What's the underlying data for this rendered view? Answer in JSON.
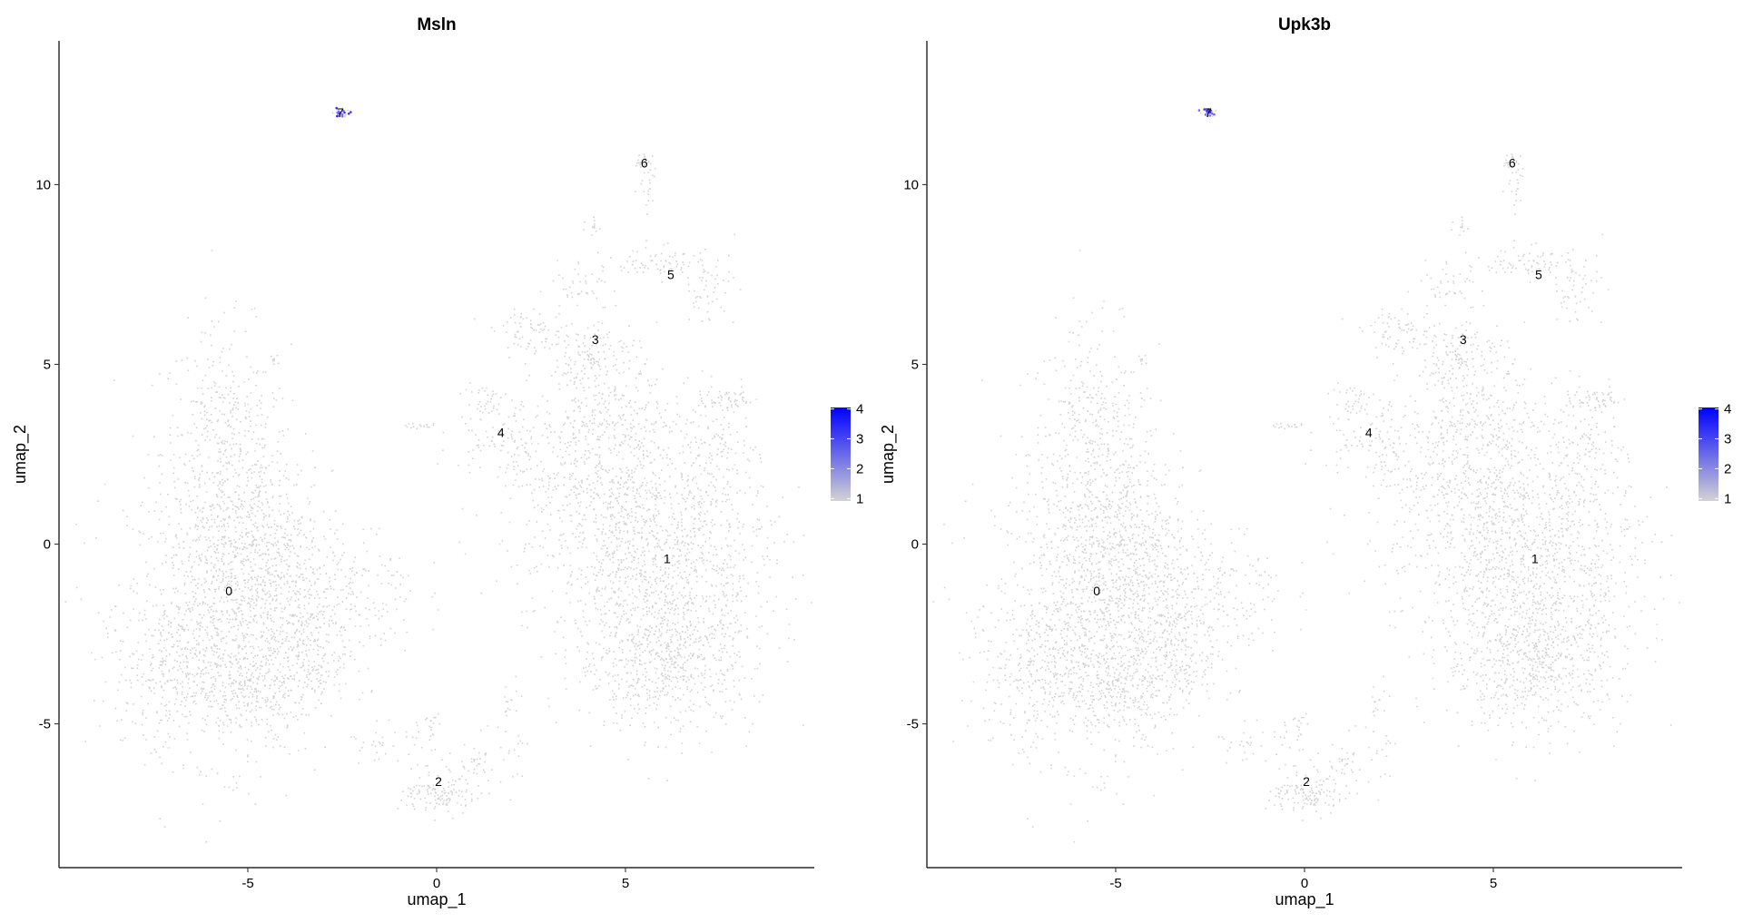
{
  "chart_data": [
    {
      "type": "scatter",
      "title": "Msln",
      "xlabel": "umap_1",
      "ylabel": "umap_2",
      "xlim": [
        -10.0,
        10.0
      ],
      "ylim": [
        -9.0,
        14.0
      ],
      "x_ticks": [
        -5,
        0,
        5
      ],
      "y_ticks": [
        -5,
        0,
        5,
        10
      ],
      "grid": false,
      "legend": {
        "placement": "right",
        "type": "colorbar",
        "ticks": [
          1,
          2,
          3,
          4
        ],
        "low_color": "#d3d3d3",
        "high_color": "#0000ff"
      },
      "cluster_labels": [
        {
          "label": "0",
          "x": -5.5,
          "y": -1.3
        },
        {
          "label": "1",
          "x": 6.1,
          "y": -0.4
        },
        {
          "label": "2",
          "x": 0.05,
          "y": -6.6
        },
        {
          "label": "3",
          "x": 4.2,
          "y": 5.7
        },
        {
          "label": "4",
          "x": 1.7,
          "y": 3.1
        },
        {
          "label": "5",
          "x": 6.2,
          "y": 7.5
        },
        {
          "label": "6",
          "x": 5.5,
          "y": 10.6
        },
        {
          "label": "7",
          "x": -2.55,
          "y": 12.0
        }
      ]
    },
    {
      "type": "scatter",
      "title": "Upk3b",
      "xlabel": "umap_1",
      "ylabel": "umap_2",
      "xlim": [
        -10.0,
        10.0
      ],
      "ylim": [
        -9.0,
        14.0
      ],
      "x_ticks": [
        -5,
        0,
        5
      ],
      "y_ticks": [
        -5,
        0,
        5,
        10
      ],
      "grid": false,
      "legend": {
        "placement": "right",
        "type": "colorbar",
        "ticks": [
          1,
          2,
          3,
          4
        ],
        "low_color": "#d3d3d3",
        "high_color": "#0000ff"
      },
      "cluster_labels": [
        {
          "label": "0",
          "x": -5.5,
          "y": -1.3
        },
        {
          "label": "1",
          "x": 6.1,
          "y": -0.4
        },
        {
          "label": "2",
          "x": 0.05,
          "y": -6.6
        },
        {
          "label": "3",
          "x": 4.2,
          "y": 5.7
        },
        {
          "label": "4",
          "x": 1.7,
          "y": 3.1
        },
        {
          "label": "5",
          "x": 6.2,
          "y": 7.5
        },
        {
          "label": "6",
          "x": 5.5,
          "y": 10.6
        },
        {
          "label": "7",
          "x": -2.55,
          "y": 12.0
        }
      ]
    }
  ]
}
